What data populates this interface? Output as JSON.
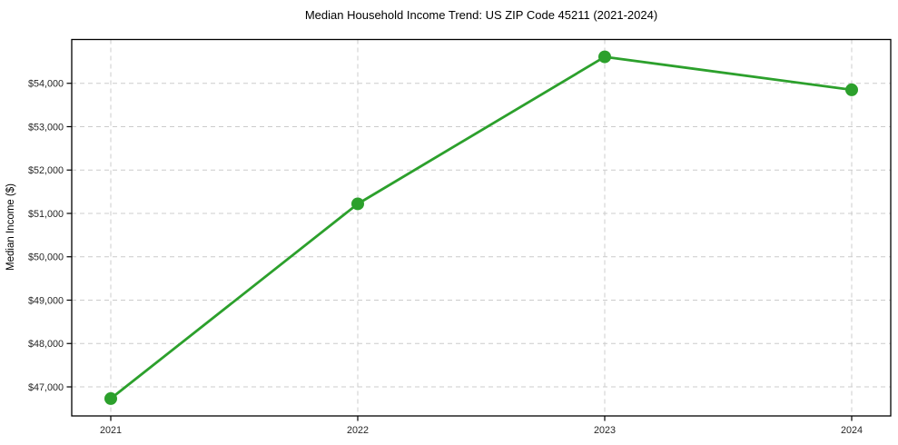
{
  "figure": {
    "background": "#ffffff"
  },
  "chart_data": {
    "type": "line",
    "title": "Median Household Income Trend: US ZIP Code 45211 (2021-2024)",
    "xlabel": "",
    "ylabel": "Median Income ($)",
    "categories": [
      "2021",
      "2022",
      "2023",
      "2024"
    ],
    "series": [
      {
        "name": "median-household-income",
        "values": [
          46730,
          51220,
          54610,
          53850
        ],
        "color": "#2ca02c",
        "marker": "circle",
        "marker_radius": 7,
        "line_width": 2.8
      }
    ],
    "yticks": [
      47000,
      48000,
      49000,
      50000,
      51000,
      52000,
      53000,
      54000
    ],
    "ytick_labels": [
      "$47,000",
      "$48,000",
      "$49,000",
      "$50,000",
      "$51,000",
      "$52,000",
      "$53,000",
      "$54,000"
    ],
    "ylim": [
      46330,
      55010
    ],
    "grid": true,
    "grid_color": "#cccccc",
    "grid_dash": "5 4",
    "axis_color": "#000000",
    "tick_label_color": "#262626",
    "legend_position": "none"
  }
}
